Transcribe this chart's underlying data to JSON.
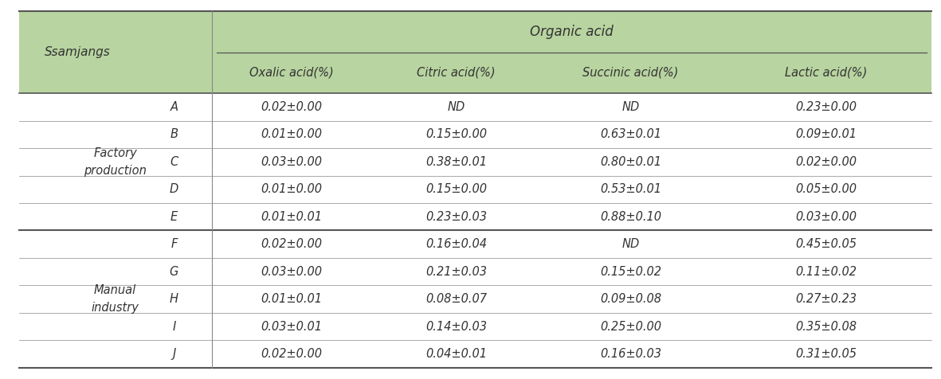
{
  "title": "Organic acid",
  "header_bg": "#b8d4a0",
  "sample_labels": [
    "A",
    "B",
    "C",
    "D",
    "E",
    "F",
    "G",
    "H",
    "I",
    "J"
  ],
  "sub_headers": [
    "Oxalic acid(%)",
    "Citric acid(%)",
    "Succinic acid(%)",
    "Lactic acid(%)"
  ],
  "group1_label": "Factory\nproduction",
  "group2_label": "Manual\nindustry",
  "data": [
    [
      "0.02±0.00",
      "ND",
      "ND",
      "0.23±0.00"
    ],
    [
      "0.01±0.00",
      "0.15±0.00",
      "0.63±0.01",
      "0.09±0.01"
    ],
    [
      "0.03±0.00",
      "0.38±0.01",
      "0.80±0.01",
      "0.02±0.00"
    ],
    [
      "0.01±0.00",
      "0.15±0.00",
      "0.53±0.01",
      "0.05±0.00"
    ],
    [
      "0.01±0.01",
      "0.23±0.03",
      "0.88±0.10",
      "0.03±0.00"
    ],
    [
      "0.02±0.00",
      "0.16±0.04",
      "ND",
      "0.45±0.05"
    ],
    [
      "0.03±0.00",
      "0.21±0.03",
      "0.15±0.02",
      "0.11±0.02"
    ],
    [
      "0.01±0.01",
      "0.08±0.07",
      "0.09±0.08",
      "0.27±0.23"
    ],
    [
      "0.03±0.01",
      "0.14±0.03",
      "0.25±0.00",
      "0.35±0.08"
    ],
    [
      "0.02±0.00",
      "0.04±0.01",
      "0.16±0.03",
      "0.31±0.05"
    ]
  ],
  "line_color": "#888888",
  "thick_line_color": "#555555",
  "text_color": "#333333",
  "font_size": 10.5,
  "header_font_size": 11
}
